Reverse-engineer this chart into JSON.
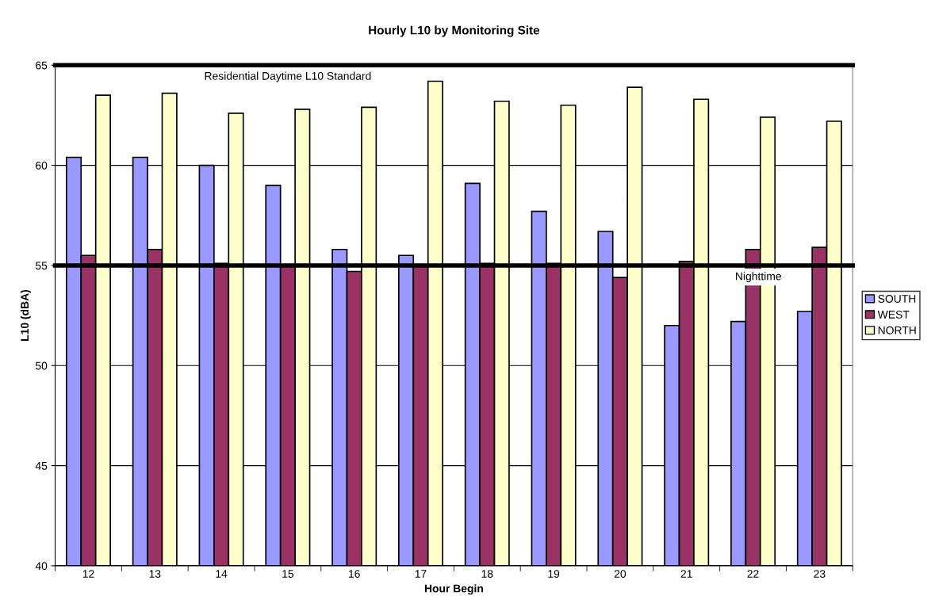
{
  "chart_data": {
    "type": "bar",
    "title": "Hourly L10 by Monitoring Site",
    "xlabel": "Hour Begin",
    "ylabel": "L10 (dBA)",
    "categories": [
      "12",
      "13",
      "14",
      "15",
      "16",
      "17",
      "18",
      "19",
      "20",
      "21",
      "22",
      "23"
    ],
    "series": [
      {
        "name": "SOUTH",
        "color": "#9999ff",
        "values": [
          60.4,
          60.4,
          60.0,
          59.0,
          55.8,
          55.5,
          59.1,
          57.7,
          56.7,
          52.0,
          52.2,
          52.7
        ]
      },
      {
        "name": "WEST",
        "color": "#993366",
        "values": [
          55.5,
          55.8,
          55.1,
          55.0,
          54.7,
          55.0,
          55.1,
          55.1,
          54.4,
          55.2,
          55.8,
          55.9
        ]
      },
      {
        "name": "NORTH",
        "color": "#ffffcc",
        "values": [
          63.5,
          63.6,
          62.6,
          62.8,
          62.9,
          64.2,
          63.2,
          63.0,
          63.9,
          63.3,
          62.4,
          62.2
        ]
      }
    ],
    "ylim": [
      40,
      65
    ],
    "yticks": [
      40,
      45,
      50,
      55,
      60,
      65
    ],
    "grid": "y",
    "legend": "right",
    "ref_lines": [
      {
        "axis": "y",
        "value": 65,
        "label": "Residential Daytime L10 Standard",
        "color": "#000000"
      },
      {
        "axis": "y",
        "value": 55,
        "label": "Nighttime",
        "color": "#000000"
      }
    ]
  }
}
